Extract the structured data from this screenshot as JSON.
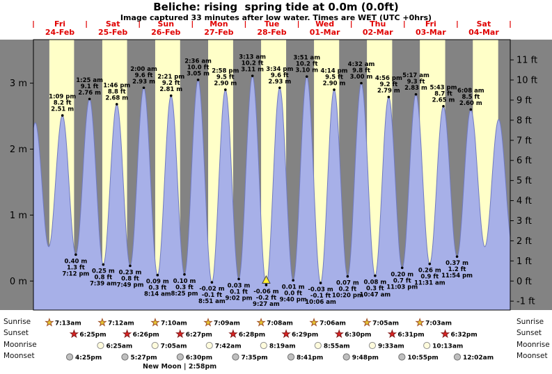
{
  "title": "Beliche: rising  spring tide at 0.0m (0.0ft)",
  "subtitle": "Image captured 33 minutes after low water. Times are WET (UTC +0hrs)",
  "day_headers": [
    {
      "name": "Fri",
      "date": "24-Feb"
    },
    {
      "name": "Sat",
      "date": "25-Feb"
    },
    {
      "name": "Sun",
      "date": "26-Feb"
    },
    {
      "name": "Mon",
      "date": "27-Feb"
    },
    {
      "name": "Tue",
      "date": "28-Feb"
    },
    {
      "name": "Wed",
      "date": "01-Mar"
    },
    {
      "name": "Thu",
      "date": "02-Mar"
    },
    {
      "name": "Fri",
      "date": "03-Mar"
    },
    {
      "name": "Sat",
      "date": "04-Mar"
    }
  ],
  "axes": {
    "left_m": [
      {
        "v": 3,
        "label": "3 m"
      },
      {
        "v": 2,
        "label": "2 m"
      },
      {
        "v": 1,
        "label": "1 m"
      },
      {
        "v": 0,
        "label": "0 m"
      }
    ],
    "right_ft": [
      {
        "v": 11,
        "label": "11 ft"
      },
      {
        "v": 10,
        "label": "10 ft"
      },
      {
        "v": 9,
        "label": "9 ft"
      },
      {
        "v": 8,
        "label": "8 ft"
      },
      {
        "v": 7,
        "label": "7 ft"
      },
      {
        "v": 6,
        "label": "6 ft"
      },
      {
        "v": 5,
        "label": "5 ft"
      },
      {
        "v": 4,
        "label": "4 ft"
      },
      {
        "v": 3,
        "label": "3 ft"
      },
      {
        "v": 2,
        "label": "2 ft"
      },
      {
        "v": 1,
        "label": "1 ft"
      },
      {
        "v": 0,
        "label": "0 ft"
      },
      {
        "v": -1,
        "label": "-1 ft"
      }
    ]
  },
  "chart_data": {
    "type": "area",
    "title": "Beliche: rising  spring tide at 0.0m (0.0ft)",
    "x_range": "Fri 24-Feb 00:00 to Sat 04-Mar 24:00 (9 days)",
    "y_units": [
      "m",
      "ft"
    ],
    "ylim_m": [
      -0.44,
      3.66
    ],
    "extremes": [
      {
        "kind": "high",
        "t": 13.15,
        "v": 2.51,
        "lines": [
          "1:09 pm",
          "8.2 ft",
          "2.51 m"
        ]
      },
      {
        "kind": "low",
        "t": 19.2,
        "v": 0.4,
        "lines": [
          "0.40 m",
          "1.3 ft",
          "7:12 pm"
        ]
      },
      {
        "kind": "high",
        "t": 25.42,
        "v": 2.76,
        "lines": [
          "1:25 am",
          "9.1 ft",
          "2.76 m"
        ]
      },
      {
        "kind": "low",
        "t": 31.65,
        "v": 0.25,
        "lines": [
          "0.25 m",
          "0.8 ft",
          "7:39 am"
        ]
      },
      {
        "kind": "high",
        "t": 37.77,
        "v": 2.68,
        "lines": [
          "1:46 pm",
          "8.8 ft",
          "2.68 m"
        ]
      },
      {
        "kind": "low",
        "t": 43.82,
        "v": 0.23,
        "lines": [
          "0.23 m",
          "0.8 ft",
          "7:49 pm"
        ]
      },
      {
        "kind": "high",
        "t": 50.0,
        "v": 2.93,
        "lines": [
          "2:00 am",
          "9.6 ft",
          "2.93 m"
        ]
      },
      {
        "kind": "low",
        "t": 56.23,
        "v": 0.09,
        "lines": [
          "0.09 m",
          "0.3 ft",
          "8:14 am"
        ]
      },
      {
        "kind": "high",
        "t": 62.35,
        "v": 2.81,
        "lines": [
          "2:21 pm",
          "9.2 ft",
          "2.81 m"
        ]
      },
      {
        "kind": "low",
        "t": 68.42,
        "v": 0.1,
        "lines": [
          "0.10 m",
          "0.3 ft",
          "8:25 pm"
        ]
      },
      {
        "kind": "high",
        "t": 74.6,
        "v": 3.05,
        "lines": [
          "2:36 am",
          "10.0 ft",
          "3.05 m"
        ]
      },
      {
        "kind": "low",
        "t": 80.85,
        "v": -0.02,
        "lines": [
          "-0.02 m",
          "-0.1 ft",
          "8:51 am"
        ]
      },
      {
        "kind": "high",
        "t": 86.97,
        "v": 2.9,
        "lines": [
          "2:58 pm",
          "9.5 ft",
          "2.90 m"
        ]
      },
      {
        "kind": "low",
        "t": 93.03,
        "v": 0.03,
        "lines": [
          "0.03 m",
          "0.1 ft",
          "9:02 pm"
        ]
      },
      {
        "kind": "high",
        "t": 99.22,
        "v": 3.11,
        "lines": [
          "3:13 am",
          "10.2 ft",
          "3.11 m"
        ]
      },
      {
        "kind": "low",
        "t": 105.45,
        "v": -0.06,
        "lines": [
          "-0.06 m",
          "-0.2 ft",
          "9:27 am"
        ],
        "marker": true
      },
      {
        "kind": "high",
        "t": 111.57,
        "v": 2.93,
        "lines": [
          "3:34 pm",
          "9.6 ft",
          "2.93 m"
        ]
      },
      {
        "kind": "low",
        "t": 117.67,
        "v": 0.01,
        "lines": [
          "0.01 m",
          "0.0 ft",
          "9:40 pm"
        ]
      },
      {
        "kind": "high",
        "t": 123.85,
        "v": 3.1,
        "lines": [
          "3:51 am",
          "10.2 ft",
          "3.10 m"
        ]
      },
      {
        "kind": "low",
        "t": 130.1,
        "v": -0.03,
        "lines": [
          "-0.03 m",
          "-0.1 ft",
          "10:06 am"
        ]
      },
      {
        "kind": "high",
        "t": 136.23,
        "v": 2.9,
        "lines": [
          "4:14 pm",
          "9.5 ft",
          "2.90 m"
        ]
      },
      {
        "kind": "low",
        "t": 142.33,
        "v": 0.07,
        "lines": [
          "0.07 m",
          "0.2 ft",
          "10:20 pm"
        ]
      },
      {
        "kind": "high",
        "t": 148.53,
        "v": 3.0,
        "lines": [
          "4:32 am",
          "9.8 ft",
          "3.00 m"
        ]
      },
      {
        "kind": "low",
        "t": 154.78,
        "v": 0.08,
        "lines": [
          "0.08 m",
          "0.3 ft",
          "10:47 am"
        ]
      },
      {
        "kind": "high",
        "t": 160.93,
        "v": 2.79,
        "lines": [
          "4:56 pm",
          "9.2 ft",
          "2.79 m"
        ]
      },
      {
        "kind": "low",
        "t": 167.05,
        "v": 0.2,
        "lines": [
          "0.20 m",
          "0.7 ft",
          "11:03 pm"
        ]
      },
      {
        "kind": "high",
        "t": 173.28,
        "v": 2.83,
        "lines": [
          "5:17 am",
          "9.3 ft",
          "2.83 m"
        ]
      },
      {
        "kind": "low",
        "t": 179.52,
        "v": 0.26,
        "lines": [
          "0.26 m",
          "0.9 ft",
          "11:31 am"
        ]
      },
      {
        "kind": "high",
        "t": 185.72,
        "v": 2.65,
        "lines": [
          "5:43 pm",
          "8.7 ft",
          "2.65 m"
        ]
      },
      {
        "kind": "low",
        "t": 191.9,
        "v": 0.37,
        "lines": [
          "0.37 m",
          "1.2 ft",
          "11:54 pm"
        ]
      },
      {
        "kind": "high",
        "t": 198.13,
        "v": 2.6,
        "lines": [
          "6:08 am",
          "8.5 ft",
          "2.60 m"
        ]
      }
    ]
  },
  "astro": {
    "row_labels": {
      "sunrise": "Sunrise",
      "sunset": "Sunset",
      "moonrise": "Moonrise",
      "moonset": "Moonset"
    },
    "sunrise": [
      {
        "day": 0,
        "time": "7:13am"
      },
      {
        "day": 1,
        "time": "7:12am"
      },
      {
        "day": 2,
        "time": "7:10am"
      },
      {
        "day": 3,
        "time": "7:09am"
      },
      {
        "day": 4,
        "time": "7:08am"
      },
      {
        "day": 5,
        "time": "7:06am"
      },
      {
        "day": 6,
        "time": "7:05am"
      },
      {
        "day": 7,
        "time": "7:03am"
      }
    ],
    "sunset": [
      {
        "day": 0,
        "time": "6:25pm"
      },
      {
        "day": 1,
        "time": "6:26pm"
      },
      {
        "day": 2,
        "time": "6:27pm"
      },
      {
        "day": 3,
        "time": "6:28pm"
      },
      {
        "day": 4,
        "time": "6:29pm"
      },
      {
        "day": 5,
        "time": "6:30pm"
      },
      {
        "day": 6,
        "time": "6:31pm"
      },
      {
        "day": 7,
        "time": "6:32pm"
      }
    ],
    "moonrise": [
      {
        "day": 1,
        "time": "6:25am"
      },
      {
        "day": 2,
        "time": "7:05am"
      },
      {
        "day": 3,
        "time": "7:42am"
      },
      {
        "day": 4,
        "time": "8:19am"
      },
      {
        "day": 5,
        "time": "8:55am"
      },
      {
        "day": 6,
        "time": "9:33am"
      },
      {
        "day": 7,
        "time": "10:13am"
      }
    ],
    "moonset": [
      {
        "day": 0,
        "time": "4:25pm"
      },
      {
        "day": 1,
        "time": "5:27pm"
      },
      {
        "day": 2,
        "time": "6:30pm"
      },
      {
        "day": 3,
        "time": "7:35pm"
      },
      {
        "day": 4,
        "time": "8:41pm"
      },
      {
        "day": 5,
        "time": "9:48pm"
      },
      {
        "day": 6,
        "time": "10:55pm"
      },
      {
        "day": 8,
        "time": "12:02am"
      }
    ],
    "new_moon": "New Moon | 2:58pm"
  },
  "colors": {
    "night": "#838383",
    "day": "#ffffc8",
    "tide_fill": "#a7b0e8",
    "tide_stroke": "#707ac0",
    "header_red": "#e00000",
    "marker": "#ffee33",
    "sunrise_star": "#e6c832",
    "sunrise_star_edge": "#a05028",
    "sunset_star": "#dd2222",
    "sunset_star_edge": "#801818",
    "moonrise_fill": "#fffbdc",
    "moonrise_edge": "#909090",
    "moonset_fill": "#bfbfbf",
    "moonset_edge": "#707070"
  }
}
